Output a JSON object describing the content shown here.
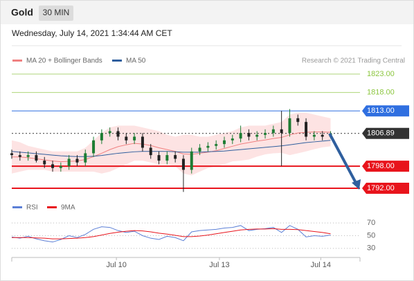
{
  "chart_data": {
    "type": "candlestick",
    "title": "Gold",
    "subtitle": "30 MIN",
    "date": "Wednesday, July 14, 2021 1:34:44 AM CET",
    "credit": "Research © 2021 Trading Central",
    "up_color": "#1e7d34",
    "down_color": "#222222",
    "open": [
      1801.5,
      1801,
      1800.5,
      1801,
      1799.5,
      1798.5,
      1797.5,
      1798,
      1800,
      1799,
      1801.5,
      1805,
      1807,
      1807.5,
      1806,
      1805,
      1806,
      1803,
      1801,
      1799.5,
      1801,
      1800,
      1797,
      1802,
      1803,
      1803.5,
      1804,
      1805,
      1805.5,
      1807,
      1806,
      1806.5,
      1807,
      1808,
      1807,
      1811,
      1810,
      1806,
      1806.5,
      1806
    ],
    "high": [
      1802.5,
      1802,
      1802,
      1802,
      1800.5,
      1799.5,
      1799,
      1801,
      1801,
      1802.5,
      1806,
      1808,
      1808.5,
      1808.5,
      1807,
      1807,
      1807,
      1804,
      1802,
      1802,
      1802,
      1801,
      1803,
      1804,
      1804.5,
      1805,
      1806,
      1806.5,
      1809,
      1808,
      1807.5,
      1808,
      1809,
      1813,
      1813.5,
      1812,
      1811,
      1807.5,
      1807.5,
      1807.5
    ],
    "low": [
      1800,
      1799.5,
      1799.5,
      1799,
      1797.5,
      1796.5,
      1796.5,
      1797,
      1798,
      1798,
      1800.5,
      1804,
      1806,
      1805,
      1804,
      1804,
      1802,
      1800,
      1798.5,
      1798.5,
      1799,
      1791,
      1796,
      1801,
      1802,
      1802.5,
      1803,
      1804,
      1804.5,
      1805,
      1805,
      1805.5,
      1806,
      1798,
      1806,
      1809,
      1805,
      1805,
      1805,
      1805.5
    ],
    "close": [
      1801,
      1800.5,
      1801,
      1799.5,
      1798.5,
      1797.5,
      1798,
      1800,
      1799,
      1801.5,
      1805,
      1807,
      1807.5,
      1806,
      1805,
      1806,
      1803,
      1801,
      1799.5,
      1801,
      1800,
      1797,
      1802,
      1803,
      1803.5,
      1804,
      1805,
      1805.5,
      1807,
      1806,
      1806.5,
      1807,
      1808,
      1807,
      1811,
      1810,
      1806,
      1806.5,
      1806,
      1806.89
    ],
    "series": [
      {
        "name": "MA 20 + Bollinger Bands",
        "color": "#f08080",
        "values": [
          1800.5,
          1800.5,
          1800.3,
          1800,
          1799.7,
          1799.4,
          1799.2,
          1799.3,
          1799.4,
          1799.8,
          1800.6,
          1801.5,
          1802.5,
          1803.3,
          1803.8,
          1804.2,
          1804,
          1803.6,
          1803,
          1802.5,
          1802,
          1801.3,
          1801.2,
          1801.5,
          1801.8,
          1802.2,
          1802.8,
          1803.4,
          1804,
          1804.4,
          1804.8,
          1805.1,
          1805.5,
          1805.8,
          1806.5,
          1807,
          1807.2,
          1807.3,
          1807.3,
          1807.2
        ],
        "upper": [
          1805,
          1804.5,
          1803.5,
          1803,
          1802.5,
          1802,
          1802,
          1802,
          1802,
          1803,
          1805,
          1807,
          1808.5,
          1809,
          1809,
          1809,
          1808.5,
          1808,
          1807.5,
          1806.5,
          1806,
          1806.5,
          1806.5,
          1806,
          1806,
          1806.5,
          1807,
          1807.5,
          1808.5,
          1809,
          1809,
          1809,
          1809.5,
          1810,
          1812,
          1812.5,
          1812.5,
          1812,
          1811.5,
          1811
        ],
        "lower": [
          1796,
          1796.5,
          1797,
          1797,
          1797,
          1796.5,
          1796.5,
          1796.5,
          1796.5,
          1796.5,
          1796.5,
          1796,
          1796.5,
          1797.5,
          1798.5,
          1799.5,
          1799.5,
          1799,
          1798.5,
          1798.5,
          1798,
          1796,
          1795.5,
          1796.5,
          1797.5,
          1798,
          1798.5,
          1799.3,
          1799.5,
          1799.8,
          1800.6,
          1801.2,
          1801.5,
          1801.6,
          1801,
          1801.5,
          1802,
          1802.6,
          1803.1,
          1803.4
        ]
      },
      {
        "name": "MA 50",
        "color": "#2f5f9e",
        "values": [
          1802,
          1801.8,
          1801.6,
          1801.4,
          1801.2,
          1801,
          1800.8,
          1800.7,
          1800.6,
          1800.6,
          1800.7,
          1800.9,
          1801.2,
          1801.5,
          1801.7,
          1801.9,
          1802,
          1802,
          1802,
          1802,
          1801.9,
          1801.8,
          1801.8,
          1801.8,
          1801.9,
          1802,
          1802.1,
          1802.3,
          1802.5,
          1802.7,
          1802.9,
          1803.1,
          1803.3,
          1803.5,
          1803.8,
          1804.1,
          1804.4,
          1804.6,
          1804.8,
          1805
        ]
      }
    ],
    "levels": [
      {
        "value": 1823,
        "label": "1823.00",
        "color": "#8cc63f",
        "style": "text"
      },
      {
        "value": 1818,
        "label": "1818.00",
        "color": "#8cc63f",
        "style": "text"
      },
      {
        "value": 1813,
        "label": "1813.00",
        "color": "#2f6fe0",
        "style": "box"
      },
      {
        "value": 1806.89,
        "label": "1806.89",
        "color": "#333333",
        "style": "box"
      },
      {
        "value": 1798,
        "label": "1798.00",
        "color": "#e8141c",
        "style": "box"
      },
      {
        "value": 1792,
        "label": "1792.00",
        "color": "#e8141c",
        "style": "box"
      }
    ],
    "ylim": [
      1790.5,
      1824.5
    ],
    "xlim": [
      0,
      42.6
    ],
    "xticks": [
      {
        "value": 12.8,
        "label": "Jul 10"
      },
      {
        "value": 25.4,
        "label": "Jul 13"
      },
      {
        "value": 37.8,
        "label": "Jul 14"
      }
    ],
    "rsi": {
      "series": [
        {
          "name": "RSI",
          "color": "#5b7fd6",
          "values": [
            48,
            46,
            49,
            45,
            42,
            40,
            44,
            50,
            47,
            52,
            60,
            64,
            63,
            58,
            55,
            57,
            50,
            46,
            44,
            49,
            47,
            42,
            56,
            58,
            59,
            60,
            62,
            63,
            66,
            58,
            60,
            61,
            63,
            55,
            66,
            60,
            48,
            50,
            49,
            51
          ]
        },
        {
          "name": "9MA",
          "color": "#e8141c",
          "values": [
            47,
            47,
            47,
            46.5,
            46,
            45,
            45,
            45.5,
            46,
            47,
            48.5,
            51,
            53.5,
            55.5,
            57,
            58,
            57.5,
            56,
            54,
            52.5,
            50.5,
            48.5,
            48.5,
            49.5,
            51,
            53,
            55,
            57,
            59,
            60,
            60.5,
            60.5,
            61,
            60,
            60,
            59.5,
            58,
            56.5,
            55,
            53
          ]
        }
      ],
      "ylim": [
        20,
        80
      ],
      "yticks": [
        70,
        50,
        30
      ]
    }
  }
}
